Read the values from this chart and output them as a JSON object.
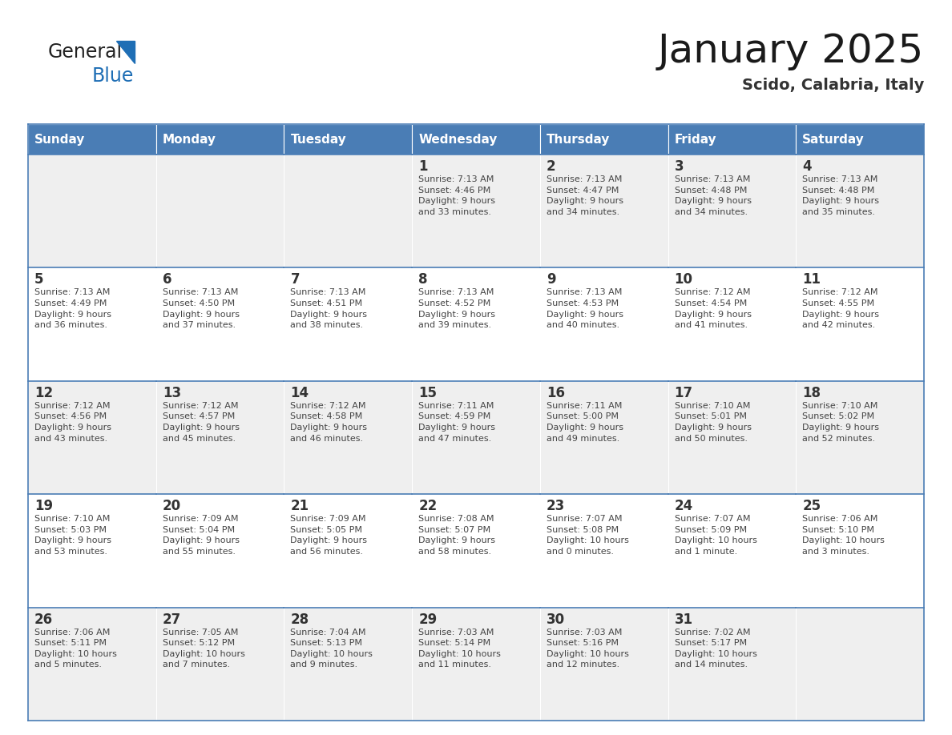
{
  "title": "January 2025",
  "subtitle": "Scido, Calabria, Italy",
  "days_of_week": [
    "Sunday",
    "Monday",
    "Tuesday",
    "Wednesday",
    "Thursday",
    "Friday",
    "Saturday"
  ],
  "header_bg": "#4a7db5",
  "header_text": "#FFFFFF",
  "cell_bg_light": "#efefef",
  "cell_bg_white": "#FFFFFF",
  "day_num_color": "#333333",
  "text_color": "#444444",
  "line_color": "#4a7db5",
  "logo_general_color": "#222222",
  "logo_blue_color": "#1e6eb5",
  "calendar_data": [
    [
      {
        "day": null,
        "info": null
      },
      {
        "day": null,
        "info": null
      },
      {
        "day": null,
        "info": null
      },
      {
        "day": 1,
        "info": "Sunrise: 7:13 AM\nSunset: 4:46 PM\nDaylight: 9 hours\nand 33 minutes."
      },
      {
        "day": 2,
        "info": "Sunrise: 7:13 AM\nSunset: 4:47 PM\nDaylight: 9 hours\nand 34 minutes."
      },
      {
        "day": 3,
        "info": "Sunrise: 7:13 AM\nSunset: 4:48 PM\nDaylight: 9 hours\nand 34 minutes."
      },
      {
        "day": 4,
        "info": "Sunrise: 7:13 AM\nSunset: 4:48 PM\nDaylight: 9 hours\nand 35 minutes."
      }
    ],
    [
      {
        "day": 5,
        "info": "Sunrise: 7:13 AM\nSunset: 4:49 PM\nDaylight: 9 hours\nand 36 minutes."
      },
      {
        "day": 6,
        "info": "Sunrise: 7:13 AM\nSunset: 4:50 PM\nDaylight: 9 hours\nand 37 minutes."
      },
      {
        "day": 7,
        "info": "Sunrise: 7:13 AM\nSunset: 4:51 PM\nDaylight: 9 hours\nand 38 minutes."
      },
      {
        "day": 8,
        "info": "Sunrise: 7:13 AM\nSunset: 4:52 PM\nDaylight: 9 hours\nand 39 minutes."
      },
      {
        "day": 9,
        "info": "Sunrise: 7:13 AM\nSunset: 4:53 PM\nDaylight: 9 hours\nand 40 minutes."
      },
      {
        "day": 10,
        "info": "Sunrise: 7:12 AM\nSunset: 4:54 PM\nDaylight: 9 hours\nand 41 minutes."
      },
      {
        "day": 11,
        "info": "Sunrise: 7:12 AM\nSunset: 4:55 PM\nDaylight: 9 hours\nand 42 minutes."
      }
    ],
    [
      {
        "day": 12,
        "info": "Sunrise: 7:12 AM\nSunset: 4:56 PM\nDaylight: 9 hours\nand 43 minutes."
      },
      {
        "day": 13,
        "info": "Sunrise: 7:12 AM\nSunset: 4:57 PM\nDaylight: 9 hours\nand 45 minutes."
      },
      {
        "day": 14,
        "info": "Sunrise: 7:12 AM\nSunset: 4:58 PM\nDaylight: 9 hours\nand 46 minutes."
      },
      {
        "day": 15,
        "info": "Sunrise: 7:11 AM\nSunset: 4:59 PM\nDaylight: 9 hours\nand 47 minutes."
      },
      {
        "day": 16,
        "info": "Sunrise: 7:11 AM\nSunset: 5:00 PM\nDaylight: 9 hours\nand 49 minutes."
      },
      {
        "day": 17,
        "info": "Sunrise: 7:10 AM\nSunset: 5:01 PM\nDaylight: 9 hours\nand 50 minutes."
      },
      {
        "day": 18,
        "info": "Sunrise: 7:10 AM\nSunset: 5:02 PM\nDaylight: 9 hours\nand 52 minutes."
      }
    ],
    [
      {
        "day": 19,
        "info": "Sunrise: 7:10 AM\nSunset: 5:03 PM\nDaylight: 9 hours\nand 53 minutes."
      },
      {
        "day": 20,
        "info": "Sunrise: 7:09 AM\nSunset: 5:04 PM\nDaylight: 9 hours\nand 55 minutes."
      },
      {
        "day": 21,
        "info": "Sunrise: 7:09 AM\nSunset: 5:05 PM\nDaylight: 9 hours\nand 56 minutes."
      },
      {
        "day": 22,
        "info": "Sunrise: 7:08 AM\nSunset: 5:07 PM\nDaylight: 9 hours\nand 58 minutes."
      },
      {
        "day": 23,
        "info": "Sunrise: 7:07 AM\nSunset: 5:08 PM\nDaylight: 10 hours\nand 0 minutes."
      },
      {
        "day": 24,
        "info": "Sunrise: 7:07 AM\nSunset: 5:09 PM\nDaylight: 10 hours\nand 1 minute."
      },
      {
        "day": 25,
        "info": "Sunrise: 7:06 AM\nSunset: 5:10 PM\nDaylight: 10 hours\nand 3 minutes."
      }
    ],
    [
      {
        "day": 26,
        "info": "Sunrise: 7:06 AM\nSunset: 5:11 PM\nDaylight: 10 hours\nand 5 minutes."
      },
      {
        "day": 27,
        "info": "Sunrise: 7:05 AM\nSunset: 5:12 PM\nDaylight: 10 hours\nand 7 minutes."
      },
      {
        "day": 28,
        "info": "Sunrise: 7:04 AM\nSunset: 5:13 PM\nDaylight: 10 hours\nand 9 minutes."
      },
      {
        "day": 29,
        "info": "Sunrise: 7:03 AM\nSunset: 5:14 PM\nDaylight: 10 hours\nand 11 minutes."
      },
      {
        "day": 30,
        "info": "Sunrise: 7:03 AM\nSunset: 5:16 PM\nDaylight: 10 hours\nand 12 minutes."
      },
      {
        "day": 31,
        "info": "Sunrise: 7:02 AM\nSunset: 5:17 PM\nDaylight: 10 hours\nand 14 minutes."
      },
      {
        "day": null,
        "info": null
      }
    ]
  ],
  "fig_width": 11.88,
  "fig_height": 9.18,
  "dpi": 100
}
